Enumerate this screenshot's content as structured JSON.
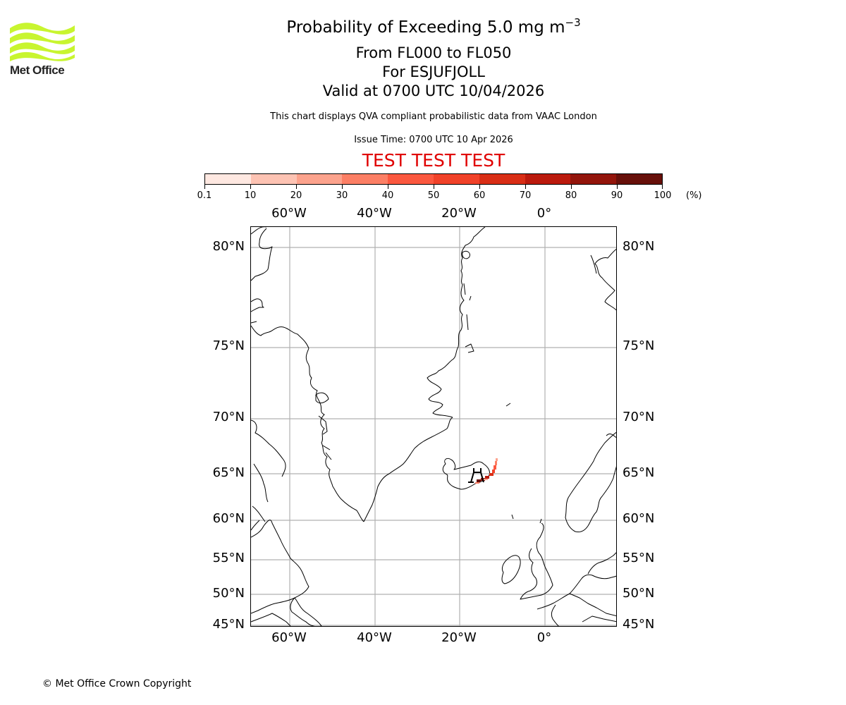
{
  "logo": {
    "text": "Met Office",
    "wave_color": "#c8f52f"
  },
  "header": {
    "title_main": "Probability of Exceeding 5.0 mg m",
    "title_superscript": "−3",
    "level_range": "From FL000 to FL050",
    "volcano": "For ESJUFJOLL",
    "valid_time": "Valid at 0700 UTC 10/04/2026",
    "description": "This chart displays QVA compliant probabilistic data from VAAC London",
    "issue_time": "Issue Time: 0700 UTC 10 Apr 2026",
    "test_banner": "TEST TEST TEST",
    "test_banner_color": "#e00000"
  },
  "colorbar": {
    "unit": "(%)",
    "tick_labels": [
      "0.1",
      "10",
      "20",
      "30",
      "40",
      "50",
      "60",
      "70",
      "80",
      "90",
      "100"
    ],
    "colors": [
      "#fee8e1",
      "#fdc3b3",
      "#fca38d",
      "#fc7f65",
      "#fb583f",
      "#f14229",
      "#d92e16",
      "#bb1a0d",
      "#93150b",
      "#67100a"
    ]
  },
  "map": {
    "projection_extent": {
      "lon_min": -69,
      "lon_max": 17,
      "lat_min": 45,
      "lat_max": 81
    },
    "longitude_labels": [
      "60°W",
      "40°W",
      "20°W",
      "0°"
    ],
    "latitude_labels": [
      "80°N",
      "75°N",
      "70°N",
      "65°N",
      "60°N",
      "55°N",
      "50°N",
      "45°N"
    ],
    "grid_color": "#b0b0b0",
    "volcano_marker": "volcano-icon",
    "plume_description": "Narrow ash probability plume extending north-east from south-east Iceland"
  },
  "chart_data": {
    "type": "heatmap",
    "title": "Probability of Exceeding 5.0 mg m−3 From FL000 to FL050 For ESJUFJOLL Valid at 0700 UTC 10/04/2026",
    "subtitle": "This chart displays QVA compliant probabilistic data from VAAC London",
    "colorbar_label": "(%)",
    "colorbar_bounds": [
      0.1,
      10,
      20,
      30,
      40,
      50,
      60,
      70,
      80,
      90,
      100
    ],
    "x_ticks": [
      "60°W",
      "40°W",
      "20°W",
      "0°"
    ],
    "y_ticks": [
      "80°N",
      "75°N",
      "70°N",
      "65°N",
      "60°N",
      "55°N",
      "50°N",
      "45°N"
    ],
    "grid": true,
    "plume": {
      "source": "ESJUFJOLL (south-east Iceland, approx 64.3°N 16.6°W)",
      "extent_approx": {
        "lon": [
          -16.5,
          -11.5
        ],
        "lat": [
          64.2,
          66.3
        ]
      },
      "max_probability_band": "90-100",
      "typical_probability_band": "40-80"
    }
  },
  "footer": {
    "copyright": "© Met Office Crown Copyright"
  }
}
